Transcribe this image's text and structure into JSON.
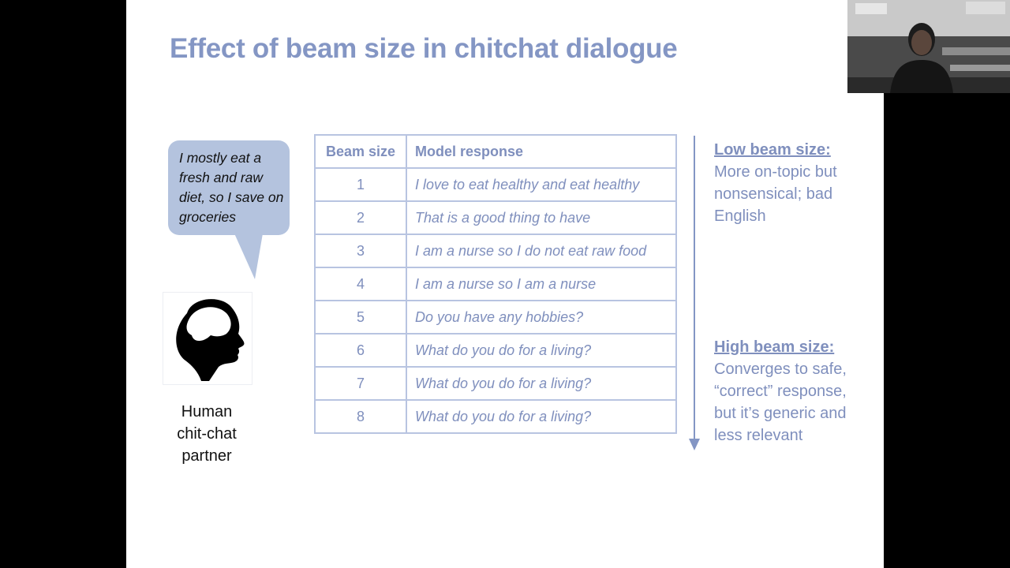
{
  "slide": {
    "title": "Effect of beam size in chitchat dialogue",
    "bubble_text": "I mostly eat a fresh and raw diet, so I save on groceries",
    "human_caption": "Human chit-chat partner"
  },
  "table": {
    "headers": [
      "Beam size",
      "Model response"
    ],
    "rows": [
      {
        "beam": "1",
        "response": "I love to eat healthy and eat healthy"
      },
      {
        "beam": "2",
        "response": "That is a good thing to have"
      },
      {
        "beam": "3",
        "response": "I am a nurse so I do not eat raw food"
      },
      {
        "beam": "4",
        "response": "I am a nurse so I am a nurse"
      },
      {
        "beam": "5",
        "response": "Do you have any hobbies?"
      },
      {
        "beam": "6",
        "response": "What do you do for a living?"
      },
      {
        "beam": "7",
        "response": "What do you do for a living?"
      },
      {
        "beam": "8",
        "response": "What do you do for a living?"
      }
    ]
  },
  "notes": {
    "low_heading": "Low beam size:",
    "low_text": "More on-topic but nonsensical; bad English",
    "high_heading": "High beam size:",
    "high_text": "Converges to safe, “correct” response, but it’s generic and less relevant"
  },
  "colors": {
    "accent": "#8496c4",
    "table_text": "#7f8fbd",
    "table_border": "#b8c4e1",
    "bubble_fill": "#b4c3de",
    "letterbox": "#000000"
  },
  "icons": [
    "head-silhouette-icon",
    "down-arrow-icon",
    "webcam-presenter"
  ]
}
